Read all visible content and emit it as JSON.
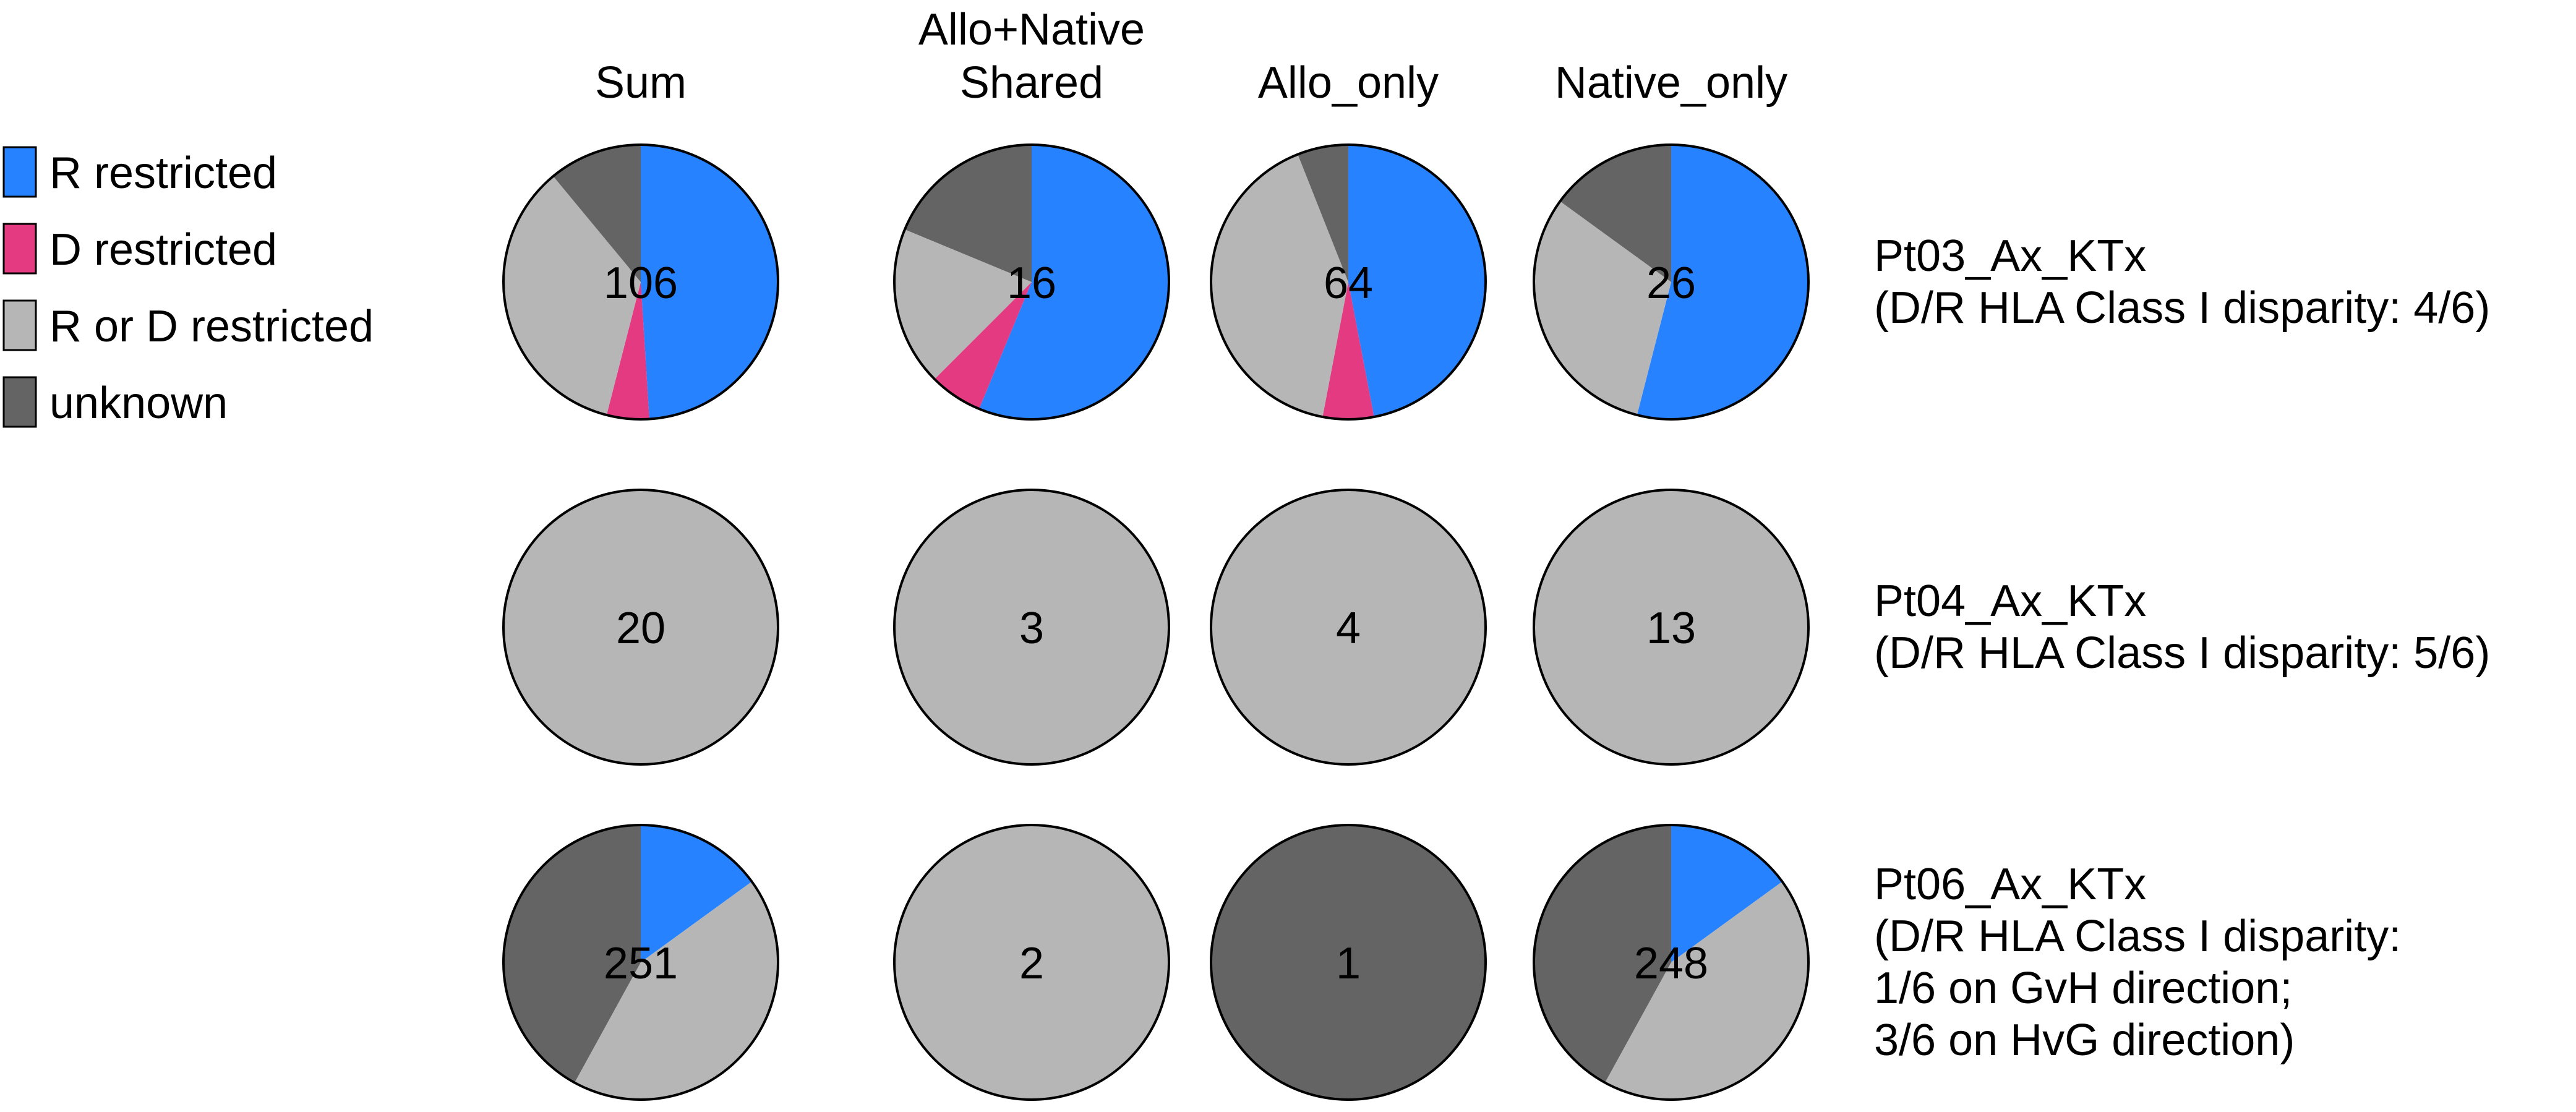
{
  "colors": {
    "R restricted": "#2682FF",
    "D restricted": "#E33A82",
    "R or D restricted": "#B6B6B6",
    "unknown": "#646464",
    "outline": "#000000"
  },
  "legend": {
    "items": [
      {
        "label": "R restricted",
        "color": "#2682FF"
      },
      {
        "label": "D restricted",
        "color": "#E33A82"
      },
      {
        "label": "R or D restricted",
        "color": "#B6B6B6"
      },
      {
        "label": "unknown",
        "color": "#646464"
      }
    ]
  },
  "chart_data": {
    "type": "pie",
    "title": "",
    "columns": [
      {
        "lines": [
          "Sum"
        ]
      },
      {
        "lines": [
          "Allo+Native",
          "Shared"
        ]
      },
      {
        "lines": [
          "Allo_only"
        ]
      },
      {
        "lines": [
          "Native_only"
        ]
      }
    ],
    "categories": [
      "R restricted",
      "D restricted",
      "R or D restricted",
      "unknown"
    ],
    "rows": [
      {
        "label_lines": [
          "Pt03_Ax_KTx",
          "(D/R HLA Class I disparity: 4/6)"
        ],
        "pies": [
          {
            "column": "Sum",
            "total": 106,
            "fractions": [
              0.49,
              0.05,
              0.35,
              0.11
            ]
          },
          {
            "column": "Allo+Native Shared",
            "total": 16,
            "fractions": [
              0.5625,
              0.0625,
              0.1875,
              0.1875
            ]
          },
          {
            "column": "Allo_only",
            "total": 64,
            "fractions": [
              0.47,
              0.06,
              0.41,
              0.06
            ]
          },
          {
            "column": "Native_only",
            "total": 26,
            "fractions": [
              0.54,
              0.0,
              0.31,
              0.15
            ]
          }
        ]
      },
      {
        "label_lines": [
          "Pt04_Ax_KTx",
          "(D/R HLA Class I disparity: 5/6)"
        ],
        "pies": [
          {
            "column": "Sum",
            "total": 20,
            "fractions": [
              0,
              0,
              1,
              0
            ]
          },
          {
            "column": "Allo+Native Shared",
            "total": 3,
            "fractions": [
              0,
              0,
              1,
              0
            ]
          },
          {
            "column": "Allo_only",
            "total": 4,
            "fractions": [
              0,
              0,
              1,
              0
            ]
          },
          {
            "column": "Native_only",
            "total": 13,
            "fractions": [
              0,
              0,
              1,
              0
            ]
          }
        ]
      },
      {
        "label_lines": [
          "Pt06_Ax_KTx",
          "(D/R HLA Class I disparity:",
          "1/6 on GvH direction;",
          "3/6 on HvG direction)"
        ],
        "pies": [
          {
            "column": "Sum",
            "total": 251,
            "fractions": [
              0.15,
              0.0,
              0.43,
              0.42
            ]
          },
          {
            "column": "Allo+Native Shared",
            "total": 2,
            "fractions": [
              0,
              0,
              1,
              0
            ]
          },
          {
            "column": "Allo_only",
            "total": 1,
            "fractions": [
              0,
              0,
              0,
              1
            ]
          },
          {
            "column": "Native_only",
            "total": 248,
            "fractions": [
              0.15,
              0.0,
              0.43,
              0.42
            ]
          }
        ]
      }
    ]
  }
}
